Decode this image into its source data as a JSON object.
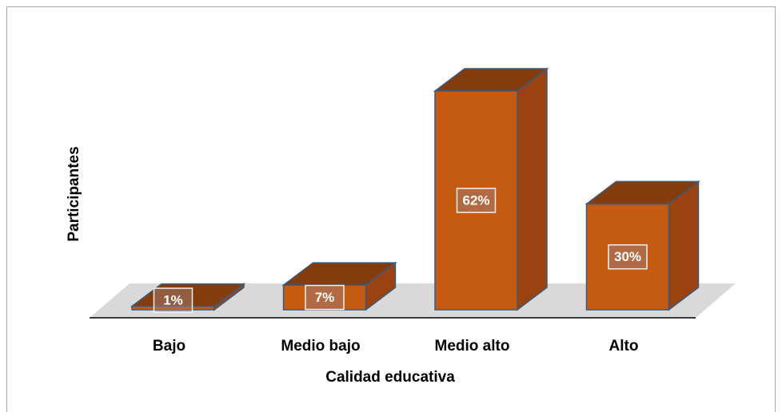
{
  "chart_data": {
    "type": "bar3d",
    "x_label": "Calidad educativa",
    "y_label": "Participantes",
    "categories": [
      "Bajo",
      "Medio bajo",
      "Medio alto",
      "Alto"
    ],
    "values": [
      1,
      7,
      62,
      30
    ],
    "value_labels": [
      "1%",
      "7%",
      "62%",
      "30%"
    ],
    "color": "#c55a11"
  }
}
